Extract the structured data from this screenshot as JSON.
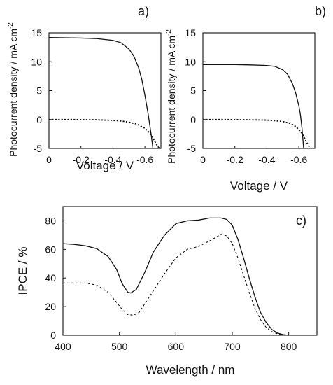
{
  "chart_data": [
    {
      "panel": "a)",
      "type": "line",
      "xlabel": "Voltage / V",
      "ylabel": "Photocurrent density / mA cm",
      "ylabel_sup": "-2",
      "xlim": [
        0,
        -0.7
      ],
      "ylim": [
        -5,
        15
      ],
      "xticks": [
        0,
        -0.2,
        -0.4,
        -0.6
      ],
      "xtick_labels": [
        "0",
        "-0.2",
        "-0.4",
        "-0.6"
      ],
      "yticks": [
        -5,
        0,
        5,
        10,
        15
      ],
      "yticks_labels": [
        "-5",
        "0",
        "5",
        "10",
        "15"
      ],
      "series": [
        {
          "style": "solid",
          "x": [
            0,
            -0.1,
            -0.2,
            -0.3,
            -0.4,
            -0.45,
            -0.5,
            -0.53,
            -0.56,
            -0.58,
            -0.6,
            -0.62,
            -0.64,
            -0.65
          ],
          "y": [
            14.2,
            14.15,
            14.1,
            14.0,
            13.7,
            13.3,
            12.2,
            11.0,
            9.0,
            7.0,
            4.2,
            1.0,
            -2.8,
            -5.0
          ]
        },
        {
          "style": "dotted",
          "x": [
            0,
            -0.1,
            -0.2,
            -0.3,
            -0.4,
            -0.45,
            -0.5,
            -0.55,
            -0.6,
            -0.63,
            -0.65,
            -0.67,
            -0.69
          ],
          "y": [
            0,
            0,
            -0.02,
            -0.05,
            -0.15,
            -0.25,
            -0.45,
            -0.8,
            -1.5,
            -2.3,
            -3.2,
            -4.2,
            -5.0
          ]
        }
      ]
    },
    {
      "panel": "b)",
      "type": "line",
      "xlabel": "Voltage / V",
      "ylabel": "Photocurrent density / mA cm",
      "ylabel_sup": "-2",
      "xlim": [
        0,
        -0.7
      ],
      "ylim": [
        -5,
        15
      ],
      "xticks": [
        0,
        -0.2,
        -0.4,
        -0.6
      ],
      "xtick_labels": [
        "0",
        "-0.2",
        "-0.4",
        "-0.6"
      ],
      "yticks": [
        -5,
        0,
        5,
        10,
        15
      ],
      "yticks_labels": [
        "-5",
        "0",
        "5",
        "10",
        "15"
      ],
      "series": [
        {
          "style": "solid",
          "x": [
            0,
            -0.1,
            -0.2,
            -0.3,
            -0.4,
            -0.45,
            -0.5,
            -0.53,
            -0.56,
            -0.58,
            -0.6,
            -0.61,
            -0.62,
            -0.63
          ],
          "y": [
            9.5,
            9.5,
            9.5,
            9.45,
            9.35,
            9.2,
            8.6,
            7.8,
            6.2,
            4.6,
            2.4,
            0.8,
            -1.6,
            -5.0
          ]
        },
        {
          "style": "dotted",
          "x": [
            0,
            -0.1,
            -0.2,
            -0.3,
            -0.4,
            -0.45,
            -0.5,
            -0.55,
            -0.58,
            -0.61,
            -0.63,
            -0.65,
            -0.67
          ],
          "y": [
            0,
            0,
            -0.02,
            -0.05,
            -0.1,
            -0.2,
            -0.35,
            -0.7,
            -1.2,
            -2.0,
            -2.9,
            -4.0,
            -5.0
          ]
        }
      ]
    },
    {
      "panel": "c)",
      "type": "line",
      "xlabel": "Wavelength / nm",
      "ylabel": "IPCE / %",
      "xlim": [
        400,
        850
      ],
      "ylim": [
        0,
        90
      ],
      "xticks": [
        400,
        500,
        600,
        700,
        800
      ],
      "xtick_labels": [
        "400",
        "500",
        "600",
        "700",
        "800"
      ],
      "yticks": [
        0,
        20,
        40,
        60,
        80
      ],
      "yticks_labels": [
        "0",
        "20",
        "40",
        "60",
        "80"
      ],
      "series": [
        {
          "style": "solid",
          "x": [
            400,
            420,
            440,
            460,
            480,
            495,
            505,
            515,
            520,
            530,
            545,
            560,
            580,
            600,
            620,
            640,
            660,
            680,
            690,
            700,
            710,
            720,
            730,
            740,
            750,
            760,
            770,
            780,
            790,
            800
          ],
          "y": [
            64,
            63.5,
            62.5,
            60.5,
            55,
            46,
            36,
            30,
            29.5,
            32,
            44,
            58,
            70,
            78,
            80,
            80.5,
            82,
            82,
            81,
            77,
            67,
            54,
            40,
            27,
            16,
            9,
            4,
            1.5,
            0.5,
            0
          ]
        },
        {
          "style": "dashed",
          "x": [
            400,
            420,
            440,
            460,
            480,
            495,
            505,
            515,
            525,
            535,
            545,
            560,
            580,
            600,
            620,
            640,
            660,
            680,
            690,
            700,
            710,
            720,
            730,
            740,
            750,
            760,
            770,
            780,
            790,
            800
          ],
          "y": [
            36.5,
            36.5,
            36.5,
            35,
            30,
            23,
            18,
            14.5,
            14,
            16,
            22,
            31,
            43,
            54,
            60,
            62,
            66,
            70.5,
            69.5,
            64,
            54,
            42,
            30,
            19,
            11,
            5.5,
            2.5,
            1,
            0.3,
            0
          ]
        }
      ]
    }
  ]
}
